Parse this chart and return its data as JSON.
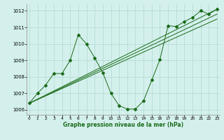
{
  "title": "Graphe pression niveau de la mer (hPa)",
  "xlabel_ticks": [
    0,
    1,
    2,
    3,
    4,
    5,
    6,
    7,
    8,
    9,
    10,
    11,
    12,
    13,
    14,
    15,
    16,
    17,
    18,
    19,
    20,
    21,
    22,
    23
  ],
  "ylim": [
    1005.7,
    1012.4
  ],
  "yticks": [
    1006,
    1007,
    1008,
    1009,
    1010,
    1011,
    1012
  ],
  "xlim": [
    -0.3,
    23.3
  ],
  "background_color": "#d4f0ec",
  "grid_color": "#b0d8d0",
  "line_color": "#1a6b1a",
  "main_line": {
    "x": [
      0,
      1,
      2,
      3,
      4,
      5,
      6,
      7,
      8,
      9,
      10,
      11,
      12,
      13,
      14,
      15,
      16,
      17,
      18,
      19,
      20,
      21,
      22,
      23
    ],
    "y": [
      1006.4,
      1007.0,
      1007.5,
      1008.2,
      1008.2,
      1009.0,
      1010.55,
      1010.0,
      1009.15,
      1008.25,
      1007.0,
      1006.25,
      1006.05,
      1006.05,
      1006.55,
      1007.8,
      1009.05,
      1011.1,
      1011.05,
      1011.35,
      1011.6,
      1012.0,
      1011.8,
      1012.1
    ]
  },
  "trend_line1": {
    "x": [
      0,
      23
    ],
    "y": [
      1006.4,
      1012.1
    ]
  },
  "trend_line2": {
    "x": [
      0,
      23
    ],
    "y": [
      1006.4,
      1011.8
    ]
  },
  "trend_line3": {
    "x": [
      0,
      23
    ],
    "y": [
      1006.4,
      1011.5
    ]
  }
}
